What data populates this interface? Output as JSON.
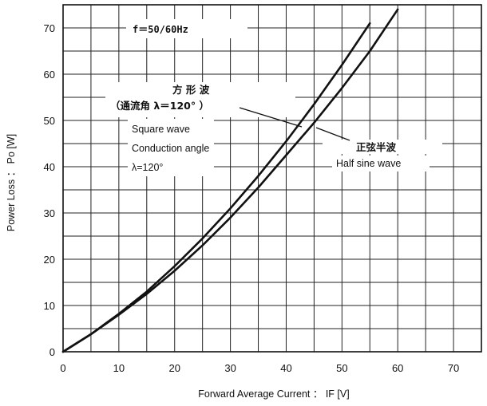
{
  "chart_data": {
    "type": "line",
    "xlabel": "Forward Average Current ： IF [V]",
    "ylabel": "Power Loss ： Po [W]",
    "xlim": [
      0,
      75
    ],
    "ylim": [
      0,
      75
    ],
    "x_ticks": [
      0,
      10,
      20,
      30,
      40,
      50,
      60,
      70
    ],
    "y_ticks": [
      0,
      10,
      20,
      30,
      40,
      50,
      60,
      70
    ],
    "grid": true,
    "series": [
      {
        "x": [
          0,
          5,
          10,
          15,
          20,
          25,
          30,
          35,
          40,
          45,
          50,
          55
        ],
        "y": [
          0,
          3.8,
          8.2,
          13.0,
          18.5,
          24.5,
          31.0,
          38.0,
          45.5,
          53.5,
          62.0,
          71.0
        ]
      },
      {
        "x": [
          0,
          5,
          10,
          15,
          20,
          25,
          30,
          35,
          40,
          45,
          50,
          55,
          60
        ],
        "y": [
          0,
          3.8,
          8.0,
          12.5,
          17.5,
          23.0,
          29.0,
          35.5,
          42.5,
          49.5,
          57.0,
          65.0,
          74.0
        ]
      }
    ],
    "annotations": {
      "frequency": "f＝50/60Hz",
      "square_wave_jp_line1": "方 形 波",
      "square_wave_jp_line2": "（通流角 λ＝120° ）",
      "square_wave_en_line1": "Square wave",
      "square_wave_en_line2": "Conduction angle",
      "square_wave_en_line3": "λ=120°",
      "half_sine_jp": "正弦半波",
      "half_sine_en": "Half sine wave"
    }
  }
}
